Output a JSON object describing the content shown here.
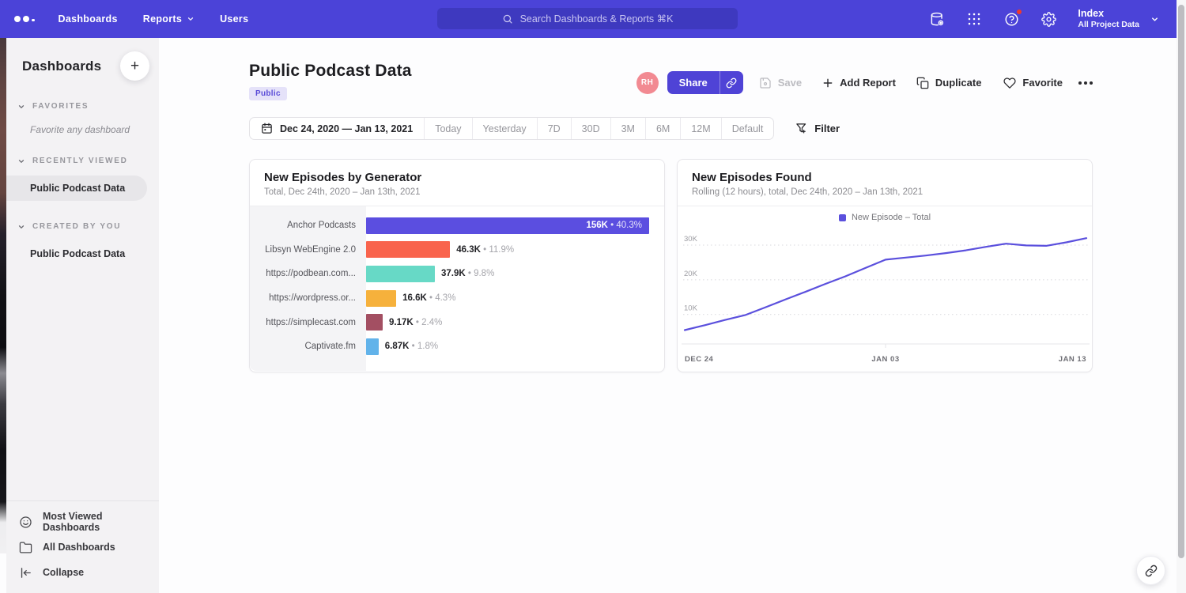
{
  "navbar": {
    "items": [
      "Dashboards",
      "Reports",
      "Users"
    ],
    "search_placeholder": "Search Dashboards & Reports ⌘K",
    "icon_buttons": [
      "data-sources-icon",
      "apps-grid-icon",
      "help-icon",
      "settings-icon"
    ],
    "project": {
      "name": "Index",
      "subtitle": "All Project Data"
    }
  },
  "sidebar": {
    "title": "Dashboards",
    "sections": [
      {
        "label": "FAVORITES",
        "items": [
          {
            "label": "Favorite any dashboard",
            "placeholder": true
          }
        ]
      },
      {
        "label": "RECENTLY VIEWED",
        "items": [
          {
            "label": "Public Podcast Data",
            "selected": true
          }
        ]
      },
      {
        "label": "CREATED BY YOU",
        "items": [
          {
            "label": "Public Podcast Data",
            "selected": false
          }
        ]
      }
    ],
    "footer": [
      "Most Viewed Dashboards",
      "All Dashboards",
      "Collapse"
    ]
  },
  "header": {
    "title": "Public Podcast Data",
    "badge": "Public",
    "avatar": "RH",
    "actions": {
      "share": "Share",
      "save": "Save",
      "add_report": "Add Report",
      "duplicate": "Duplicate",
      "favorite": "Favorite"
    }
  },
  "toolbar": {
    "date_range": "Dec 24, 2020 — Jan 13, 2021",
    "presets": [
      "Today",
      "Yesterday",
      "7D",
      "30D",
      "3M",
      "6M",
      "12M",
      "Default"
    ],
    "filter_label": "Filter"
  },
  "colors": {
    "topbar": "#4b43d8",
    "accent": "#4f43d6",
    "avatar": "#f28a92",
    "badge_bg": "#e5e2f9",
    "badge_text": "#5a4cd8"
  },
  "chart_data": [
    {
      "type": "bar",
      "orientation": "horizontal",
      "title": "New Episodes by Generator",
      "subtitle": "Total, Dec 24th, 2020 – Jan 13th, 2021",
      "categories": [
        "Anchor Podcasts",
        "Libsyn WebEngine 2.0",
        "https://podbean.com...",
        "https://wordpress.or...",
        "https://simplecast.com",
        "Captivate.fm"
      ],
      "values": [
        156000,
        46300,
        37900,
        16600,
        9170,
        6870
      ],
      "value_labels": [
        "156K",
        "46.3K",
        "37.9K",
        "16.6K",
        "9.17K",
        "6.87K"
      ],
      "pct_labels": [
        "40.3%",
        "11.9%",
        "9.8%",
        "4.3%",
        "2.4%",
        "1.8%"
      ],
      "colors": [
        "#5b4ee0",
        "#f9644d",
        "#67d9c6",
        "#f6b13c",
        "#a34f62",
        "#62b3ea"
      ]
    },
    {
      "type": "line",
      "title": "New Episodes Found",
      "subtitle": "Rolling (12 hours), total, Dec 24th, 2020 – Jan 13th, 2021",
      "legend": [
        "New Episode – Total"
      ],
      "line_color": "#5b50dd",
      "x_ticks": [
        "DEC 24",
        "JAN 03",
        "JAN 13"
      ],
      "y_ticks": [
        {
          "label": "10K",
          "value": 10000
        },
        {
          "label": "20K",
          "value": 20000
        },
        {
          "label": "30K",
          "value": 30000
        }
      ],
      "ylim": [
        0,
        34000
      ],
      "x_days": [
        "Dec 24",
        "Dec 25",
        "Dec 26",
        "Dec 27",
        "Dec 28",
        "Dec 29",
        "Dec 30",
        "Dec 31",
        "Jan 1",
        "Jan 2",
        "Jan 3",
        "Jan 4",
        "Jan 5",
        "Jan 6",
        "Jan 7",
        "Jan 8",
        "Jan 9",
        "Jan 10",
        "Jan 11",
        "Jan 12",
        "Jan 13"
      ],
      "values": [
        5500,
        6900,
        8400,
        9800,
        12000,
        14300,
        16500,
        18800,
        21000,
        23400,
        25800,
        26400,
        27000,
        27700,
        28500,
        29500,
        30400,
        29900,
        29800,
        30800,
        32000
      ],
      "grid": "dotted-horizontal",
      "legend_position": "top-center"
    }
  ]
}
